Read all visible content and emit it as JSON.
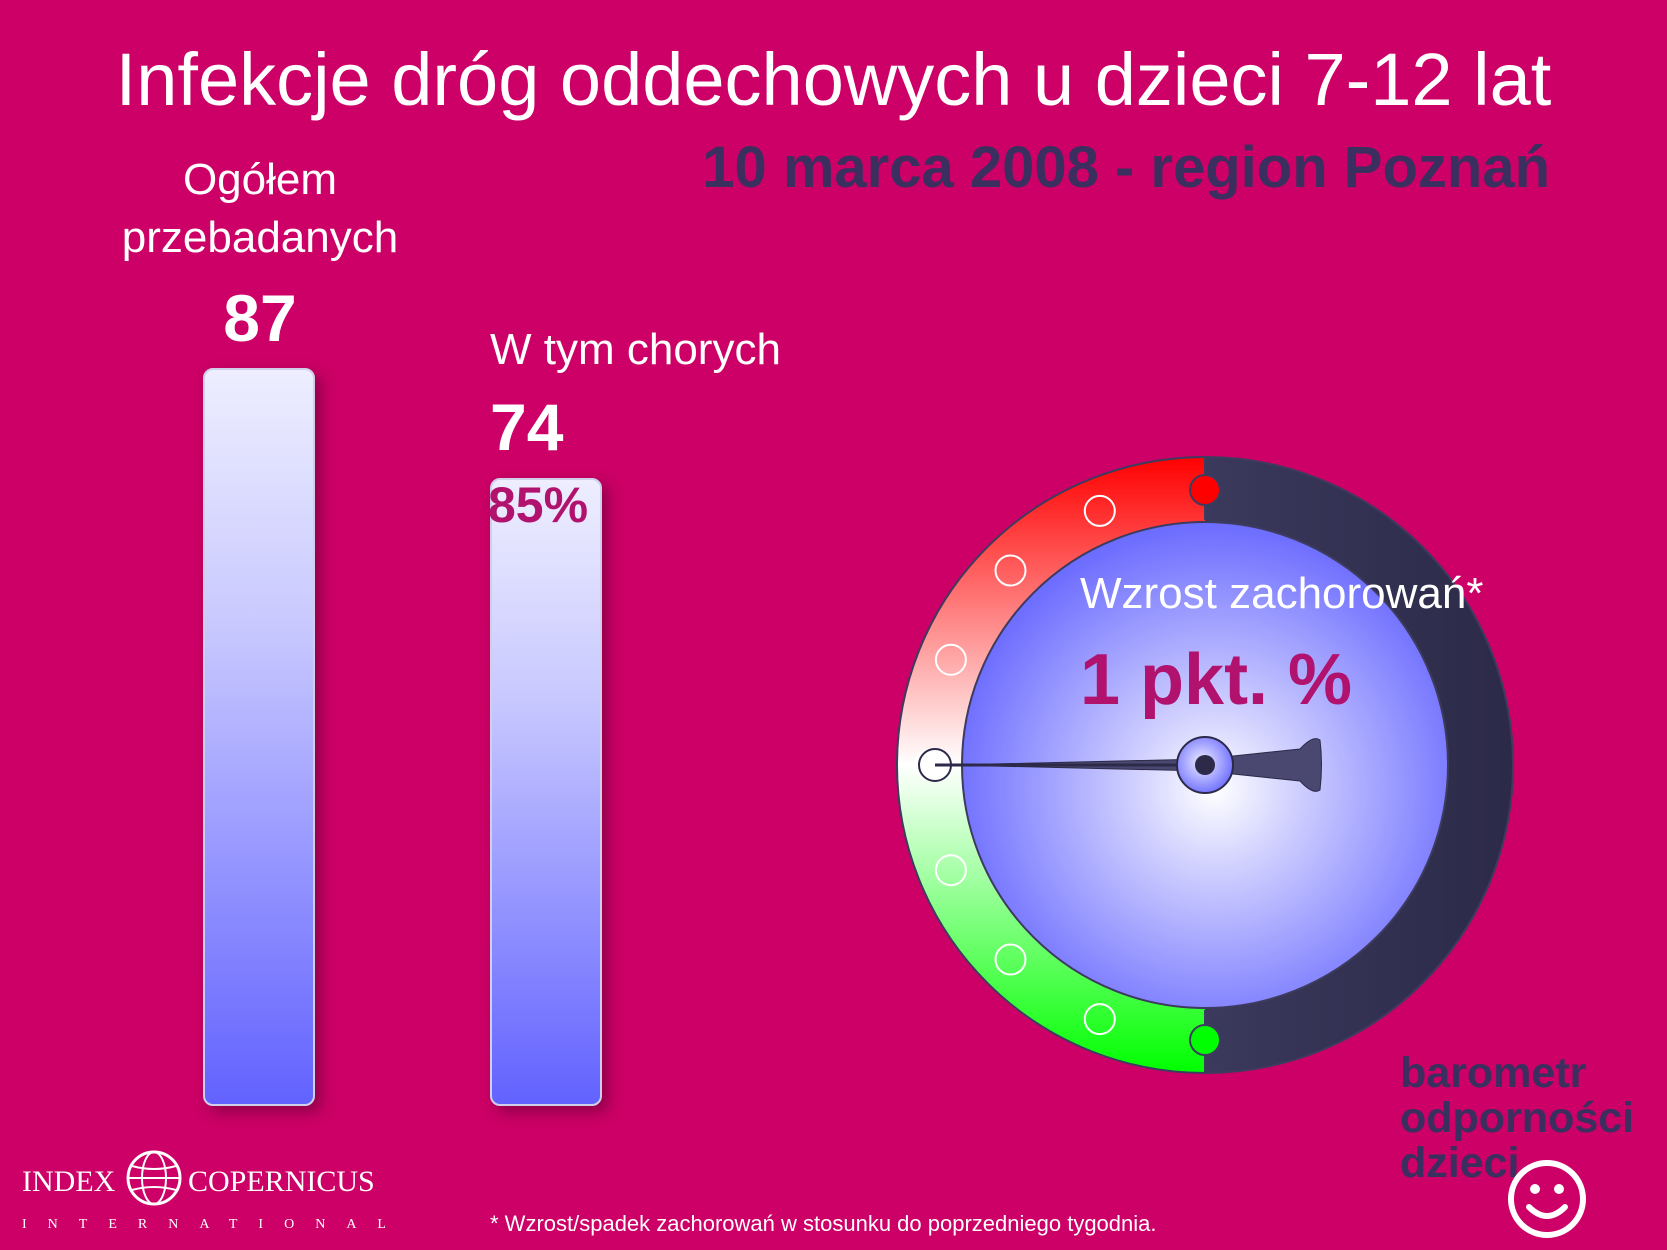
{
  "title": "Infekcje dróg oddechowych u dzieci 7-12 lat",
  "subtitle": "10 marca 2008 - region Poznań",
  "chart_data": [
    {
      "type": "bar",
      "categories": [
        "Ogółem przebadanych",
        "W tym chorych"
      ],
      "values": [
        87,
        74
      ],
      "value_labels": [
        "87",
        "74"
      ],
      "annotations": [
        "85%"
      ],
      "ylim": [
        0,
        87
      ]
    },
    {
      "type": "gauge",
      "label": "Wzrost zachorowań*",
      "value_text": "1 pkt. %",
      "value": 1,
      "scale_colors": [
        "#ff0000",
        "#ffffff",
        "#00ff00"
      ]
    }
  ],
  "labels": {
    "total_line1": "Ogółem",
    "total_line2": "przebadanych",
    "sick": "W tym chorych"
  },
  "footnote": "* Wzrost/spadek zachorowań w stosunku do poprzedniego tygodnia.",
  "logo_left": {
    "line1_left": "INDEX",
    "line1_right": "COPERNICUS",
    "line2": "INTERNATIONAL"
  },
  "brand": {
    "line1": "barometr",
    "line2": "odporności",
    "line3": "dzieci"
  },
  "colors": {
    "background": "#cc0066",
    "subtitle": "#3a2f5e",
    "accent_text": "#b0126e",
    "gauge_dial": "#6a6aff",
    "gauge_ring_dark": "#3d3b5e"
  },
  "icons": [
    "globe-icon",
    "smiley-icon"
  ]
}
